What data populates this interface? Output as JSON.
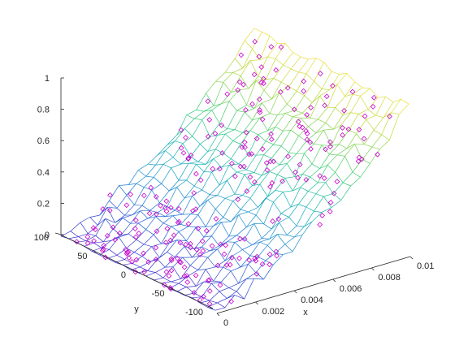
{
  "chart_data": {
    "type": "mesh3d",
    "title": "",
    "xlabel": "x",
    "ylabel": "y",
    "zlabel": "",
    "xlim": [
      0,
      0.01
    ],
    "ylim": [
      -100,
      100
    ],
    "zlim": [
      0,
      1
    ],
    "x_ticks": [
      "0",
      "0.002",
      "0.004",
      "0.006",
      "0.008",
      "0.01"
    ],
    "y_ticks": [
      "-100",
      "-50",
      "0",
      "50",
      "100"
    ],
    "z_ticks": [
      "0",
      "0.2",
      "0.4",
      "0.6",
      "0.8",
      "1"
    ],
    "grid": false,
    "legend": "none",
    "colormap": [
      "#3b2fd0",
      "#1f78d8",
      "#13b2b8",
      "#3fcf70",
      "#b8d83a",
      "#f5e23a"
    ],
    "marker_color": "#cc00cc",
    "marker": "diamond",
    "surface": {
      "description_of_shape": "sigmoid rising with x, noisy",
      "x_samples": 21,
      "y_samples": 21,
      "z_model": "z = x_norm^1.4 with noise",
      "note": ""
    },
    "scatter_count": 230
  }
}
